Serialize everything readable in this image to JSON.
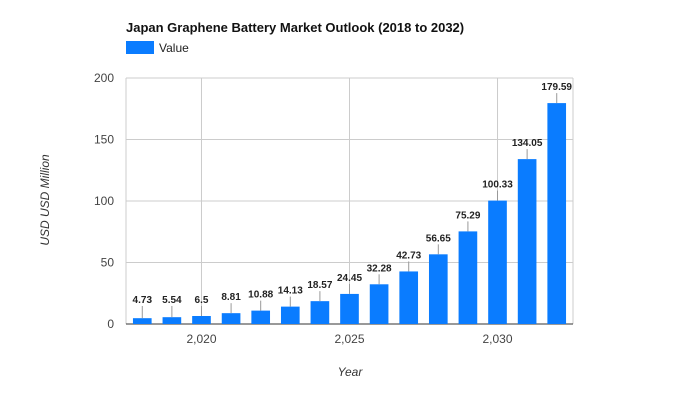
{
  "chart_data": {
    "type": "bar",
    "title": "Japan Graphene Battery Market Outlook (2018 to 2032)",
    "legend": {
      "position": "top-left",
      "entries": [
        "Value"
      ]
    },
    "series": [
      {
        "name": "Value",
        "color": "#0a7cff",
        "x": [
          2018,
          2019,
          2020,
          2021,
          2022,
          2023,
          2024,
          2025,
          2026,
          2027,
          2028,
          2029,
          2030,
          2031,
          2032
        ],
        "values": [
          4.73,
          5.54,
          6.5,
          8.81,
          10.88,
          14.13,
          18.57,
          24.45,
          32.28,
          42.73,
          56.65,
          75.29,
          100.33,
          134.05,
          179.59
        ],
        "data_labels": [
          "4.73",
          "5.54",
          "6.5",
          "8.81",
          "10.88",
          "14.13",
          "18.57",
          "24.45",
          "32.28",
          "42.73",
          "56.65",
          "75.29",
          "100.33",
          "134.05",
          "179.59"
        ]
      }
    ],
    "xlabel": "Year",
    "ylabel": "USD USD Million",
    "xlim": [
      2017.45,
      2032.55
    ],
    "ylim": [
      0,
      200
    ],
    "x_ticks": [
      2020,
      2025,
      2030
    ],
    "x_tick_labels": [
      "2,020",
      "2,025",
      "2,030"
    ],
    "y_ticks": [
      0,
      50,
      100,
      150,
      200
    ],
    "y_tick_labels": [
      "0",
      "50",
      "100",
      "150",
      "200"
    ],
    "grid": true
  }
}
